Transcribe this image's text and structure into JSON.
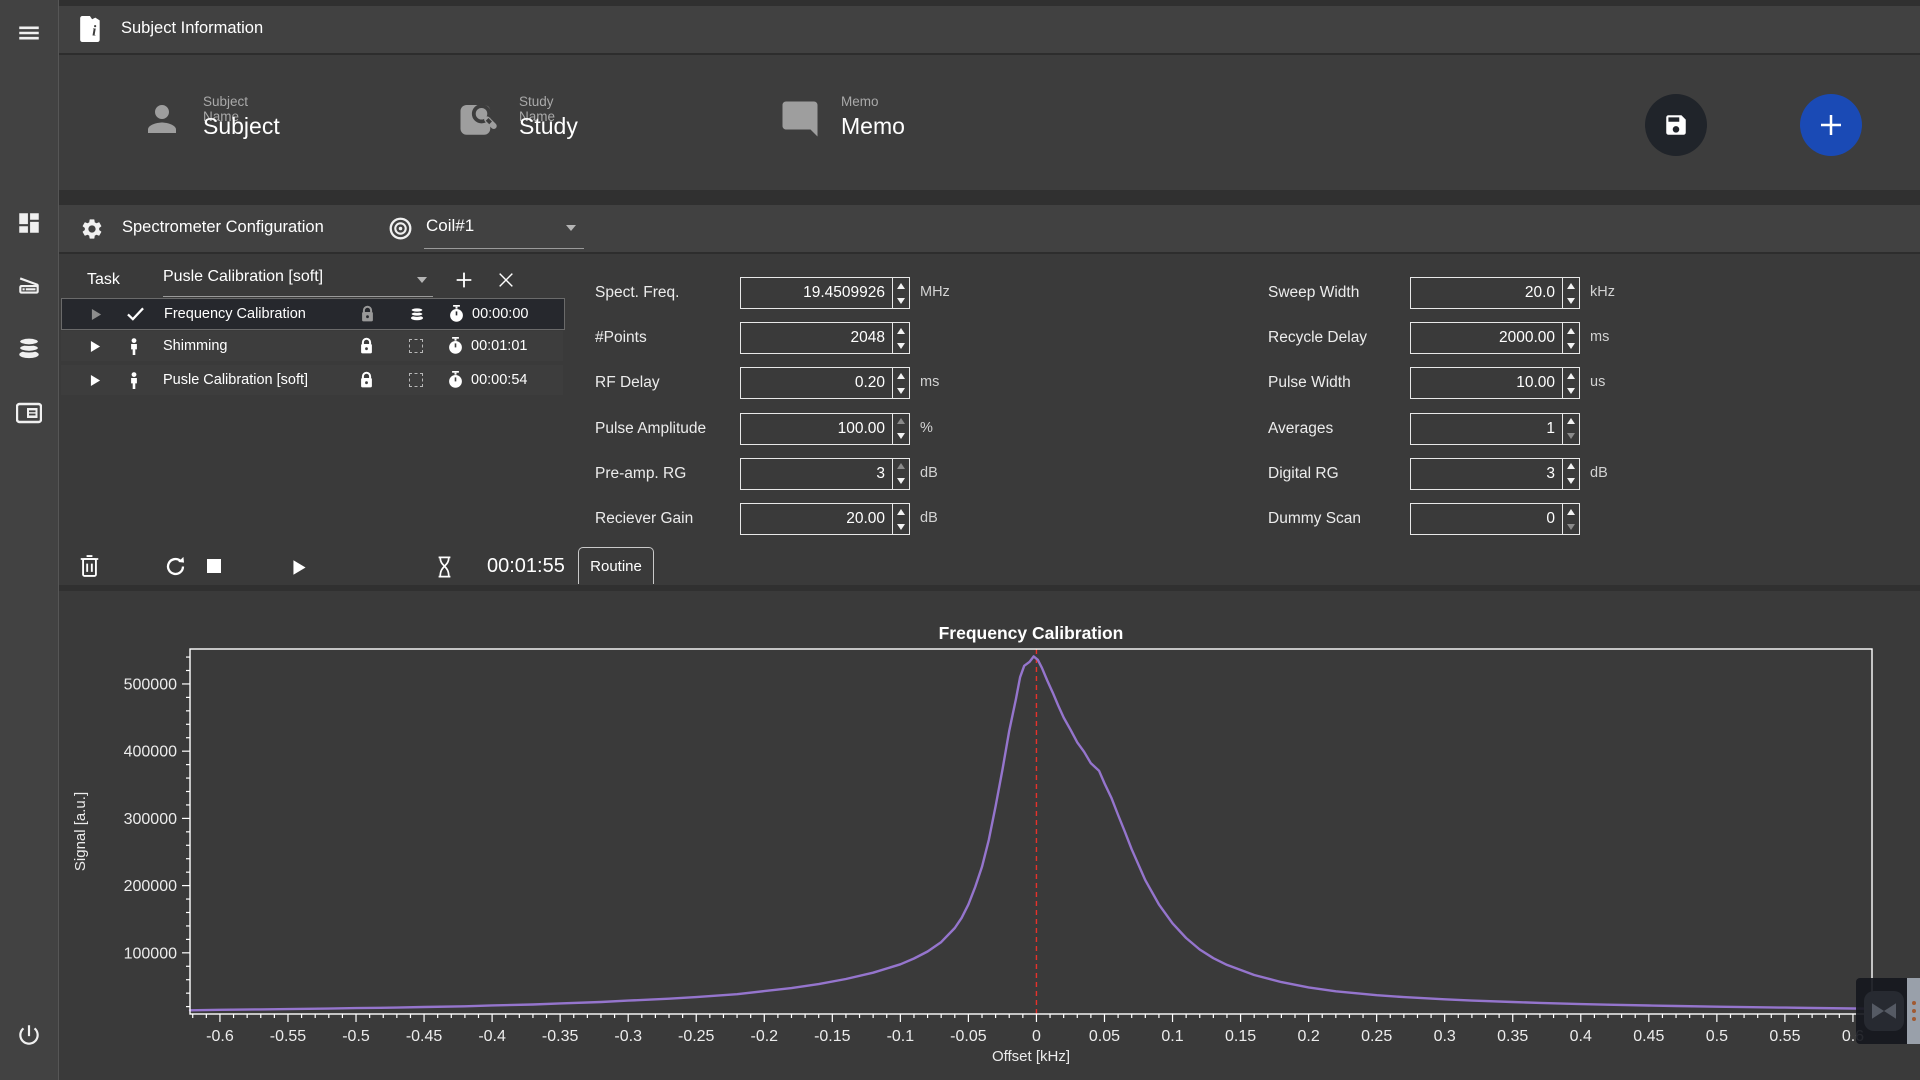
{
  "colors": {
    "accent_play": "#4355c8",
    "add_button_blue": "#1a4ab5",
    "save_button_bg": "#20242a",
    "line_purple": "#9575cd",
    "marker_red": "#e8312a",
    "selected_row": "#26282d"
  },
  "sidebar": {
    "icons": [
      "menu",
      "dashboard",
      "scanner",
      "database",
      "card",
      "power"
    ]
  },
  "subject_info": {
    "header": "Subject Information",
    "fields": [
      {
        "label": "Subject Name",
        "value": "Subject"
      },
      {
        "label": "Study Name",
        "value": "Study"
      },
      {
        "label": "Memo",
        "value": "Memo"
      }
    ]
  },
  "spectrometer": {
    "header": "Spectrometer Configuration",
    "coil": {
      "value": "Coil#1"
    },
    "task_label": "Task",
    "task_dropdown": "Pusle Calibration [soft]",
    "tasks": [
      {
        "name": "Frequency Calibration",
        "time": "00:00:00",
        "selected": true
      },
      {
        "name": "Shimming",
        "time": "00:01:01",
        "selected": false
      },
      {
        "name": "Pusle Calibration [soft]",
        "time": "00:00:54",
        "selected": false
      }
    ],
    "params_left": [
      {
        "label": "Spect. Freq.",
        "value": "19.4509926",
        "unit": "MHz"
      },
      {
        "label": "#Points",
        "value": "2048",
        "unit": ""
      },
      {
        "label": "RF Delay",
        "value": "0.20",
        "unit": "ms"
      },
      {
        "label": "Pulse Amplitude",
        "value": "100.00",
        "unit": "%",
        "dim_up": true
      },
      {
        "label": "Pre-amp. RG",
        "value": "3",
        "unit": "dB",
        "dim_up": true
      },
      {
        "label": "Reciever Gain",
        "value": "20.00",
        "unit": "dB"
      }
    ],
    "params_right": [
      {
        "label": "Sweep Width",
        "value": "20.0",
        "unit": "kHz"
      },
      {
        "label": "Recycle Delay",
        "value": "2000.00",
        "unit": "ms"
      },
      {
        "label": "Pulse Width",
        "value": "10.00",
        "unit": "us"
      },
      {
        "label": "Averages",
        "value": "1",
        "unit": "",
        "dim_down": true
      },
      {
        "label": "Digital RG",
        "value": "3",
        "unit": "dB"
      },
      {
        "label": "Dummy Scan",
        "value": "0",
        "unit": "",
        "dim_down": true
      }
    ],
    "controls": {
      "elapsed": "00:01:55",
      "routine_tab": "Routine"
    }
  },
  "chart_data": {
    "type": "line",
    "title": "Frequency Calibration",
    "xlabel": "Offset [kHz]",
    "ylabel": "Signal [a.u.]",
    "xlim": [
      -0.622,
      0.614
    ],
    "ylim": [
      9000,
      552000
    ],
    "x_major_step": 0.05,
    "x_minor_step": 0.01,
    "x_label_range": [
      -0.6,
      0.6
    ],
    "y_major_ticks": [
      100000,
      200000,
      300000,
      400000,
      500000
    ],
    "y_minor_step": 20000,
    "grid": false,
    "legend": null,
    "line_color": "#9575cd",
    "marker_line": {
      "x": 0,
      "color": "#e8312a",
      "style": "dashed"
    },
    "series": [
      {
        "name": "signal",
        "points": [
          [
            -0.622,
            14500
          ],
          [
            -0.6,
            15200
          ],
          [
            -0.57,
            15800
          ],
          [
            -0.55,
            16300
          ],
          [
            -0.52,
            17000
          ],
          [
            -0.5,
            17800
          ],
          [
            -0.47,
            18500
          ],
          [
            -0.45,
            19400
          ],
          [
            -0.42,
            20500
          ],
          [
            -0.4,
            21800
          ],
          [
            -0.37,
            23200
          ],
          [
            -0.35,
            24800
          ],
          [
            -0.32,
            26800
          ],
          [
            -0.3,
            29000
          ],
          [
            -0.27,
            31800
          ],
          [
            -0.25,
            34200
          ],
          [
            -0.22,
            38500
          ],
          [
            -0.2,
            43000
          ],
          [
            -0.18,
            47500
          ],
          [
            -0.16,
            53500
          ],
          [
            -0.14,
            61000
          ],
          [
            -0.12,
            70500
          ],
          [
            -0.1,
            83000
          ],
          [
            -0.09,
            91500
          ],
          [
            -0.08,
            102000
          ],
          [
            -0.07,
            116000
          ],
          [
            -0.06,
            137000
          ],
          [
            -0.055,
            152000
          ],
          [
            -0.05,
            172000
          ],
          [
            -0.045,
            198000
          ],
          [
            -0.04,
            228000
          ],
          [
            -0.035,
            268000
          ],
          [
            -0.03,
            318000
          ],
          [
            -0.025,
            372000
          ],
          [
            -0.02,
            430000
          ],
          [
            -0.015,
            478000
          ],
          [
            -0.012,
            510000
          ],
          [
            -0.009,
            527000
          ],
          [
            -0.005,
            533000
          ],
          [
            -0.002,
            541000
          ],
          [
            0.001,
            536000
          ],
          [
            0.004,
            524000
          ],
          [
            0.008,
            505000
          ],
          [
            0.012,
            487000
          ],
          [
            0.016,
            468000
          ],
          [
            0.02,
            450000
          ],
          [
            0.025,
            432000
          ],
          [
            0.03,
            413000
          ],
          [
            0.035,
            399000
          ],
          [
            0.04,
            382000
          ],
          [
            0.046,
            371000
          ],
          [
            0.05,
            352000
          ],
          [
            0.055,
            331000
          ],
          [
            0.06,
            305000
          ],
          [
            0.065,
            280000
          ],
          [
            0.07,
            254000
          ],
          [
            0.08,
            208000
          ],
          [
            0.09,
            172000
          ],
          [
            0.1,
            144000
          ],
          [
            0.11,
            122000
          ],
          [
            0.12,
            105000
          ],
          [
            0.13,
            92000
          ],
          [
            0.14,
            82000
          ],
          [
            0.16,
            67000
          ],
          [
            0.18,
            56500
          ],
          [
            0.2,
            48500
          ],
          [
            0.22,
            42800
          ],
          [
            0.25,
            37000
          ],
          [
            0.27,
            34200
          ],
          [
            0.3,
            30800
          ],
          [
            0.32,
            29000
          ],
          [
            0.35,
            26800
          ],
          [
            0.37,
            25500
          ],
          [
            0.4,
            23800
          ],
          [
            0.42,
            22800
          ],
          [
            0.45,
            21600
          ],
          [
            0.47,
            20900
          ],
          [
            0.5,
            19900
          ],
          [
            0.52,
            19300
          ],
          [
            0.55,
            18500
          ],
          [
            0.57,
            18000
          ],
          [
            0.6,
            17200
          ],
          [
            0.614,
            16900
          ]
        ]
      }
    ]
  }
}
